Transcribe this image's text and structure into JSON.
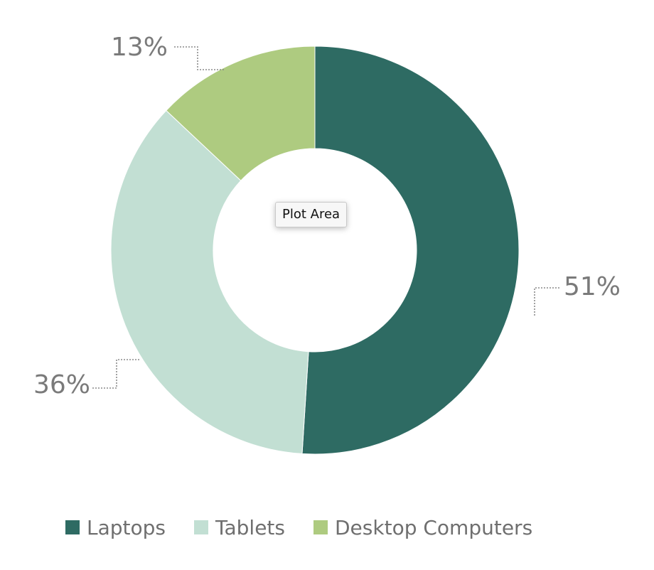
{
  "chart_data": {
    "type": "pie",
    "variant": "donut",
    "categories": [
      "Laptops",
      "Tablets",
      "Desktop Computers"
    ],
    "values": [
      51,
      36,
      13
    ],
    "value_labels": [
      "51%",
      "36%",
      "13%"
    ],
    "colors": [
      "#2e6b63",
      "#c2dfd3",
      "#aecb80"
    ],
    "title": "",
    "legend_position": "bottom"
  },
  "tooltip": {
    "text": "Plot Area"
  },
  "legend": {
    "items": [
      {
        "label": "Laptops",
        "color": "#2e6b63"
      },
      {
        "label": "Tablets",
        "color": "#c2dfd3"
      },
      {
        "label": "Desktop Computers",
        "color": "#aecb80"
      }
    ]
  }
}
